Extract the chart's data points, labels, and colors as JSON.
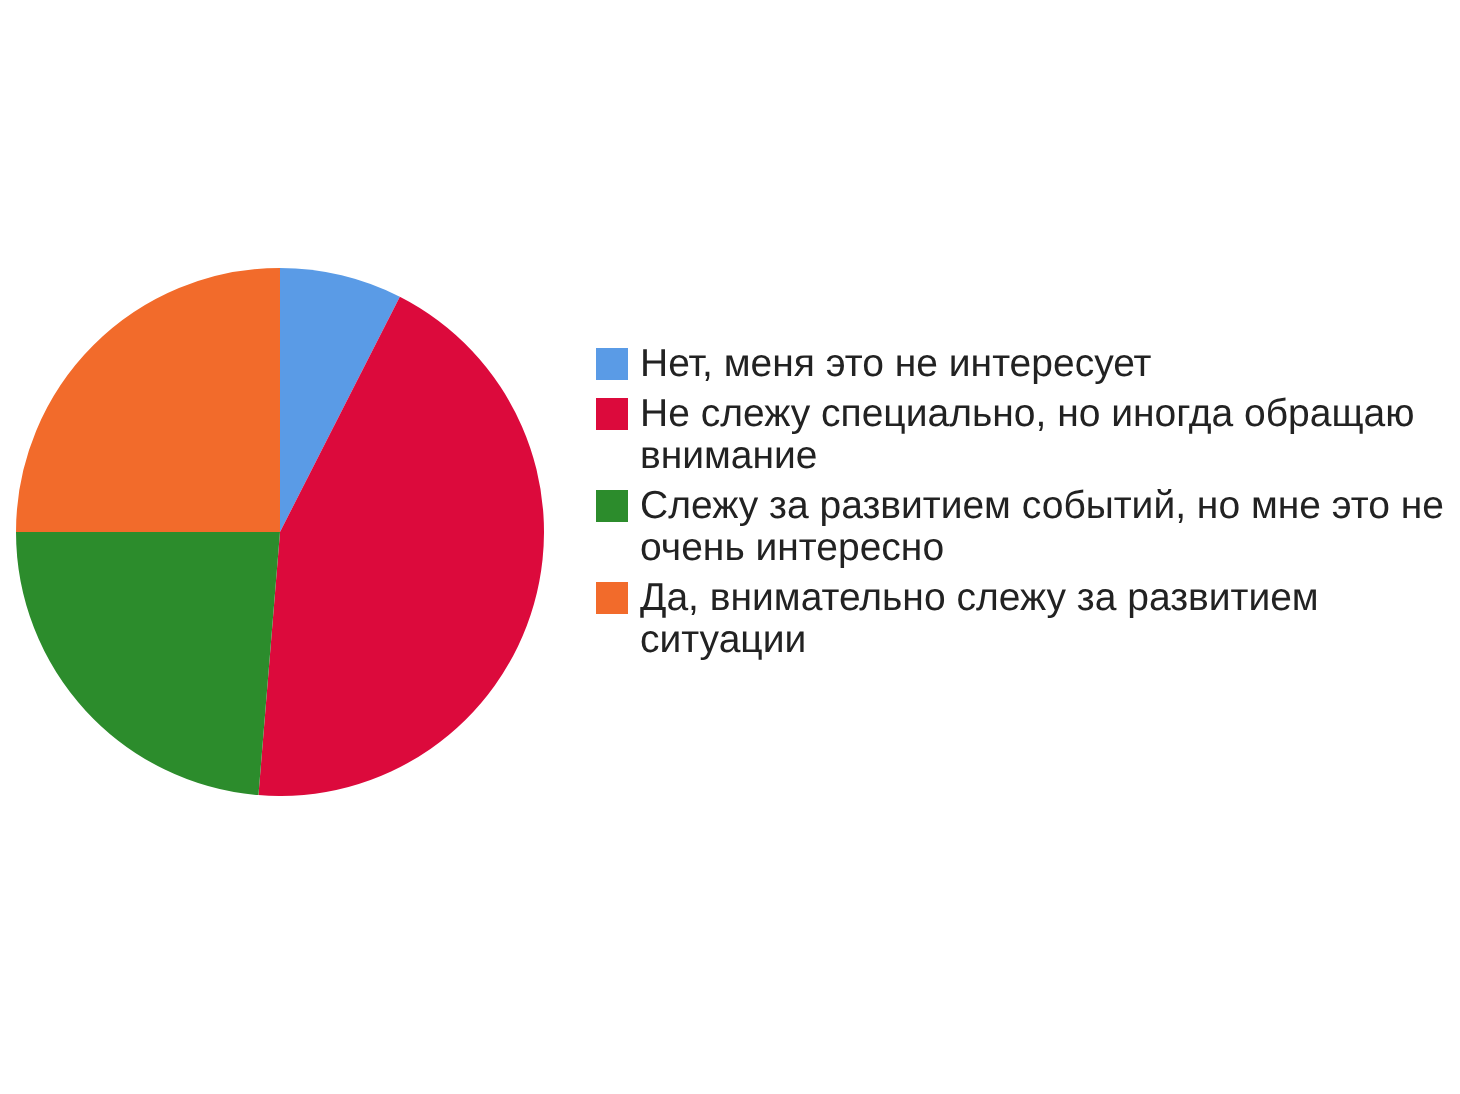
{
  "chart_data": {
    "type": "pie",
    "categories": [
      "Нет, меня это не интересует",
      "Не слежу специально, но иногда обращаю внимание",
      "Слежу за развитием событий, но мне это не очень интересно",
      "Да, внимательно слежу за развитием ситуации"
    ],
    "values": [
      7.5,
      43.8,
      23.7,
      25
    ],
    "colors": [
      "#5a9be6",
      "#dc0a3c",
      "#2c8c2c",
      "#f26b2b"
    ],
    "legend": "right"
  }
}
